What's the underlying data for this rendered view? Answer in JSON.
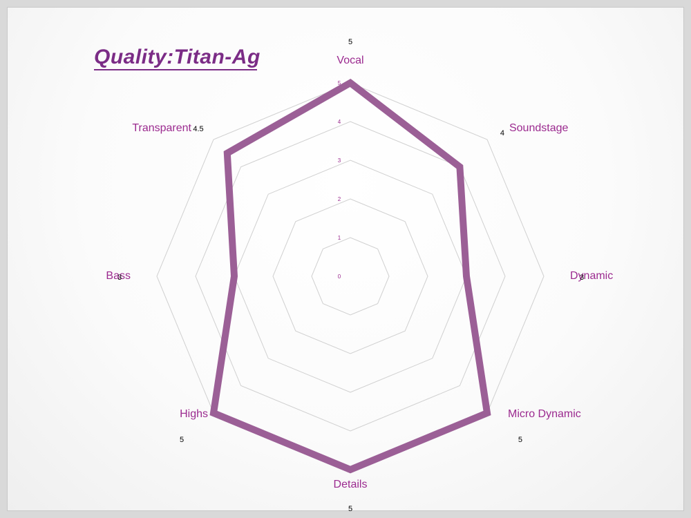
{
  "title": "Quality:Titan-Ag",
  "colors": {
    "series": "#9b5f96",
    "label": "#9b2a8f",
    "grid": "#d0d0d0",
    "title": "#7b2c86"
  },
  "chart_data": {
    "type": "radar",
    "title": "Quality:Titan-Ag",
    "categories": [
      "Vocal",
      "Soundstage",
      "Dynamic",
      "Micro Dynamic",
      "Details",
      "Highs",
      "Bass",
      "Transparent"
    ],
    "series": [
      {
        "values": [
          5,
          4,
          3,
          5,
          5,
          5,
          3,
          4.5
        ]
      }
    ],
    "value_labels": [
      "5",
      "4",
      "3",
      "5",
      "5",
      "5",
      "3",
      "4.5"
    ],
    "rlim": [
      0,
      5
    ],
    "ticks": [
      0,
      1,
      2,
      3,
      4,
      5
    ],
    "tick_labels": [
      "0",
      "1",
      "2",
      "3",
      "4",
      "5"
    ],
    "grid": true,
    "legend": "none"
  }
}
